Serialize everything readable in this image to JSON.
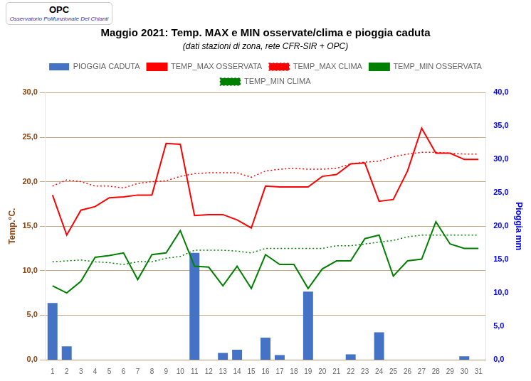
{
  "chart_data": {
    "type": "bar",
    "title": "Maggio 2021: Temp. MAX e MIN osservate/clima e pioggia caduta",
    "subtitle": "(dati stazioni di zona, rete CFR-SIR + OPC)",
    "annotations": [
      "OPC",
      "Osservatorio Polifunzionale Del Chianti"
    ],
    "y_label": "Temp.°C.",
    "y2_label": "Pioggia mm",
    "categories": [
      1,
      2,
      3,
      4,
      5,
      6,
      7,
      8,
      9,
      10,
      11,
      12,
      13,
      14,
      15,
      16,
      17,
      18,
      19,
      20,
      21,
      22,
      23,
      24,
      25,
      26,
      27,
      28,
      29,
      30,
      31
    ],
    "series": [
      {
        "name": "PIOGGIA CADUTA",
        "type": "bar",
        "axis": "y2",
        "color": "#4472c4",
        "values": [
          8.5,
          2.0,
          0,
          0,
          0,
          0,
          0,
          0,
          0,
          0,
          16.0,
          0,
          1.0,
          1.5,
          0,
          3.3,
          0.7,
          0,
          10.2,
          0,
          0,
          0.8,
          0,
          4.1,
          0,
          0,
          0,
          0,
          0,
          0.5,
          0
        ]
      },
      {
        "name": "TEMP_MAX OSSERVATA",
        "type": "line",
        "color": "#ff0000",
        "line_style": "solid",
        "values": [
          18.5,
          14.0,
          16.8,
          17.2,
          18.2,
          18.3,
          18.5,
          18.5,
          24.3,
          24.2,
          16.2,
          16.3,
          16.3,
          15.7,
          14.8,
          19.5,
          19.4,
          19.4,
          19.4,
          20.6,
          20.8,
          22.0,
          22.1,
          17.8,
          18.0,
          21.2,
          26.0,
          23.2,
          23.2,
          22.5,
          22.5
        ]
      },
      {
        "name": "TEMP_MAX CLIMA",
        "type": "line",
        "color": "#ff0000",
        "line_style": "dotted",
        "values": [
          19.5,
          20.2,
          20.0,
          19.5,
          19.5,
          19.3,
          19.8,
          20.0,
          20.1,
          20.6,
          20.9,
          21.0,
          21.0,
          21.0,
          20.5,
          21.2,
          21.4,
          21.5,
          21.4,
          21.4,
          21.5,
          22.0,
          22.2,
          22.3,
          22.8,
          23.1,
          23.3,
          23.3,
          23.2,
          23.1,
          23.1
        ]
      },
      {
        "name": "TEMP_MIN OSSERVATA",
        "type": "line",
        "color": "#008000",
        "line_style": "solid",
        "values": [
          8.3,
          7.5,
          8.8,
          11.5,
          11.7,
          12.0,
          9.0,
          11.8,
          12.0,
          14.5,
          10.5,
          10.4,
          8.3,
          10.5,
          8.0,
          11.8,
          10.7,
          10.7,
          8.0,
          10.2,
          11.1,
          11.1,
          13.6,
          14.0,
          9.4,
          11.1,
          11.3,
          15.5,
          13.0,
          12.5,
          12.5
        ]
      },
      {
        "name": "TEMP_MIN CLIMA",
        "type": "line",
        "color": "#008000",
        "line_style": "dotted",
        "values": [
          11.0,
          11.1,
          11.2,
          11.0,
          10.9,
          10.7,
          11.0,
          11.0,
          11.4,
          11.6,
          12.3,
          12.3,
          12.3,
          12.2,
          12.0,
          12.5,
          12.5,
          12.5,
          12.5,
          12.5,
          12.8,
          12.8,
          13.0,
          13.2,
          13.4,
          13.8,
          14.0,
          14.0,
          14.0,
          14.0,
          14.0
        ]
      }
    ],
    "ylim": [
      0.0,
      30.0
    ],
    "yticks": [
      {
        "value": 0,
        "label": "0,0"
      },
      {
        "value": 5,
        "label": "5,0"
      },
      {
        "value": 10,
        "label": "10,0"
      },
      {
        "value": 15,
        "label": "15,0"
      },
      {
        "value": 20,
        "label": "20,0"
      },
      {
        "value": 25,
        "label": "25,0"
      },
      {
        "value": 30,
        "label": "30,0"
      }
    ],
    "y2lim": [
      0.0,
      40.0
    ],
    "y2ticks": [
      {
        "value": 0,
        "label": "0,0"
      },
      {
        "value": 5,
        "label": "5,0"
      },
      {
        "value": 10,
        "label": "10,0"
      },
      {
        "value": 15,
        "label": "15,0"
      },
      {
        "value": 20,
        "label": "20,0"
      },
      {
        "value": 25,
        "label": "25,0"
      },
      {
        "value": 30,
        "label": "30,0"
      },
      {
        "value": 35,
        "label": "35,0"
      },
      {
        "value": 40,
        "label": "40,0"
      }
    ],
    "grid": true,
    "legend": "top"
  }
}
